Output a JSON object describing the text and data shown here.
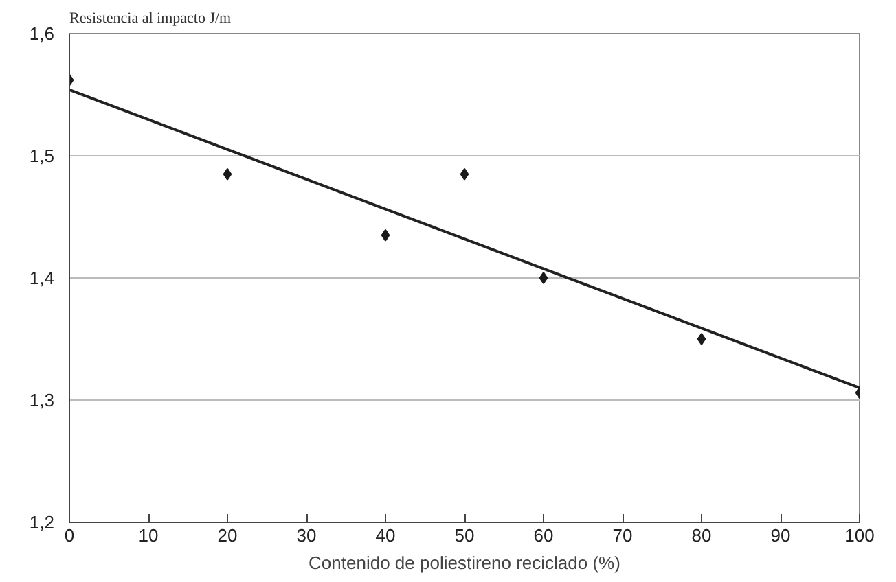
{
  "chart_data": {
    "type": "scatter",
    "title": "Resistencia al impacto J/m",
    "xlabel": "Contenido de poliestireno reciclado (%)",
    "x": [
      0,
      20,
      40,
      50,
      60,
      80,
      100
    ],
    "series": [
      {
        "color": "#1a1a1a",
        "marker": "diamond",
        "values": [
          1.562,
          1.485,
          1.435,
          1.485,
          1.4,
          1.35,
          1.306
        ]
      },
      {
        "type": "line",
        "color": "#222222",
        "x": [
          0,
          100
        ],
        "values": [
          1.554,
          1.31
        ]
      }
    ],
    "xlim": [
      0,
      100
    ],
    "xticks": [
      0,
      10,
      20,
      30,
      40,
      50,
      60,
      70,
      80,
      90,
      100
    ],
    "ylim": [
      1.2,
      1.6
    ],
    "yticks": [
      {
        "value": 1.2,
        "label": "1,2"
      },
      {
        "value": 1.3,
        "label": "1,3"
      },
      {
        "value": 1.4,
        "label": "1,4"
      },
      {
        "value": 1.5,
        "label": "1,5"
      },
      {
        "value": 1.6,
        "label": "1,6"
      }
    ],
    "grid": "y"
  }
}
